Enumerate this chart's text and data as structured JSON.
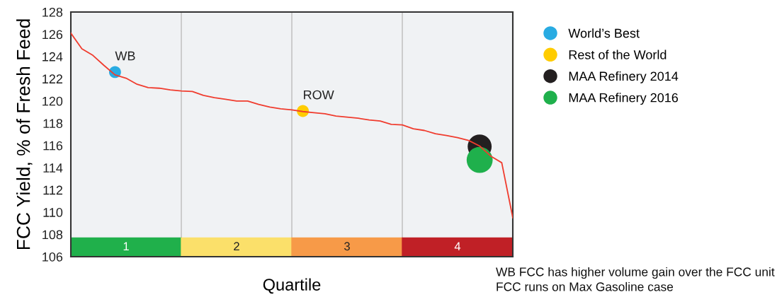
{
  "chart_data": {
    "type": "line",
    "ylabel": "FCC Yield, % of Fresh Feed",
    "xlabel": "Quartile",
    "categories": [
      null,
      null,
      null,
      null,
      null,
      null,
      null,
      null,
      null,
      null,
      null,
      null,
      null,
      null,
      null,
      null,
      null,
      null,
      null,
      null,
      null,
      null,
      null,
      null,
      null,
      null,
      null,
      null,
      null,
      null,
      null,
      null,
      null,
      null,
      null,
      null,
      null,
      null,
      null,
      null,
      null
    ],
    "ylim": [
      106,
      128
    ],
    "yticks": [
      106,
      108,
      110,
      112,
      114,
      116,
      118,
      120,
      122,
      124,
      126,
      128
    ],
    "tick_labels": "y",
    "legend": "right",
    "grid": "x",
    "series": [
      {
        "color": "#f03c2e",
        "values": [
          126.1,
          124.7,
          124.1,
          123.2,
          122.35,
          122.05,
          121.5,
          121.2,
          121.15,
          121.0,
          120.9,
          120.85,
          120.5,
          120.3,
          120.15,
          120.0,
          120.0,
          119.7,
          119.45,
          119.3,
          119.2,
          119.05,
          118.95,
          118.85,
          118.65,
          118.55,
          118.45,
          118.3,
          118.2,
          117.9,
          117.85,
          117.5,
          117.35,
          117.05,
          116.9,
          116.7,
          116.45,
          115.95,
          115.05,
          114.45,
          109.5
        ]
      },
      {
        "type": "bubble",
        "name": "World’s Best",
        "color": "#29abe2",
        "values": [
          null,
          null,
          null,
          null,
          122.6,
          null,
          null,
          null,
          null,
          null,
          null,
          null,
          null,
          null,
          null,
          null,
          null,
          null,
          null,
          null,
          null,
          null,
          null,
          null,
          null,
          null,
          null,
          null,
          null,
          null,
          null,
          null,
          null,
          null,
          null,
          null,
          null,
          null,
          null,
          null,
          null
        ],
        "sizes": [
          null,
          null,
          null,
          null,
          0.21,
          null,
          null,
          null,
          null,
          null,
          null,
          null,
          null,
          null,
          null,
          null,
          null,
          null,
          null,
          null,
          null,
          null,
          null,
          null,
          null,
          null,
          null,
          null,
          null,
          null,
          null,
          null,
          null,
          null,
          null,
          null,
          null,
          null,
          null,
          null,
          null
        ],
        "value_labels": [
          null,
          null,
          null,
          null,
          "WB",
          null,
          null,
          null,
          null,
          null,
          null,
          null,
          null,
          null,
          null,
          null,
          null,
          null,
          null,
          null,
          null,
          null,
          null,
          null,
          null,
          null,
          null,
          null,
          null,
          null,
          null,
          null,
          null,
          null,
          null,
          null,
          null,
          null,
          null,
          null,
          null
        ]
      },
      {
        "type": "bubble",
        "name": "Rest of the World",
        "color": "#ffcc00",
        "values": [
          null,
          null,
          null,
          null,
          null,
          null,
          null,
          null,
          null,
          null,
          null,
          null,
          null,
          null,
          null,
          null,
          null,
          null,
          null,
          null,
          null,
          119.1,
          null,
          null,
          null,
          null,
          null,
          null,
          null,
          null,
          null,
          null,
          null,
          null,
          null,
          null,
          null,
          null,
          null,
          null,
          null
        ],
        "sizes": [
          null,
          null,
          null,
          null,
          null,
          null,
          null,
          null,
          null,
          null,
          null,
          null,
          null,
          null,
          null,
          null,
          null,
          null,
          null,
          null,
          null,
          0.21,
          null,
          null,
          null,
          null,
          null,
          null,
          null,
          null,
          null,
          null,
          null,
          null,
          null,
          null,
          null,
          null,
          null,
          null,
          null
        ],
        "value_labels": [
          null,
          null,
          null,
          null,
          null,
          null,
          null,
          null,
          null,
          null,
          null,
          null,
          null,
          null,
          null,
          null,
          null,
          null,
          null,
          null,
          null,
          "ROW",
          null,
          null,
          null,
          null,
          null,
          null,
          null,
          null,
          null,
          null,
          null,
          null,
          null,
          null,
          null,
          null,
          null,
          null,
          null
        ]
      },
      {
        "type": "bubble",
        "name": "MAA Refinery 2014",
        "color": "#231f20",
        "values": [
          null,
          null,
          null,
          null,
          null,
          null,
          null,
          null,
          null,
          null,
          null,
          null,
          null,
          null,
          null,
          null,
          null,
          null,
          null,
          null,
          null,
          null,
          null,
          null,
          null,
          null,
          null,
          null,
          null,
          null,
          null,
          null,
          null,
          null,
          null,
          null,
          null,
          115.9,
          null,
          null,
          null
        ],
        "sizes": [
          null,
          null,
          null,
          null,
          null,
          null,
          null,
          null,
          null,
          null,
          null,
          null,
          null,
          null,
          null,
          null,
          null,
          null,
          null,
          null,
          null,
          null,
          null,
          null,
          null,
          null,
          null,
          null,
          null,
          null,
          null,
          null,
          null,
          null,
          null,
          null,
          null,
          0.85,
          null,
          null,
          null
        ]
      },
      {
        "type": "bubble",
        "name": "MAA Refinery 2016",
        "color": "#1fb04c",
        "values": [
          null,
          null,
          null,
          null,
          null,
          null,
          null,
          null,
          null,
          null,
          null,
          null,
          null,
          null,
          null,
          null,
          null,
          null,
          null,
          null,
          null,
          null,
          null,
          null,
          null,
          null,
          null,
          null,
          null,
          null,
          null,
          null,
          null,
          null,
          null,
          null,
          null,
          114.7,
          null,
          null,
          null
        ],
        "sizes": [
          null,
          null,
          null,
          null,
          null,
          null,
          null,
          null,
          null,
          null,
          null,
          null,
          null,
          null,
          null,
          null,
          null,
          null,
          null,
          null,
          null,
          null,
          null,
          null,
          null,
          null,
          null,
          null,
          null,
          null,
          null,
          null,
          null,
          null,
          null,
          null,
          null,
          1,
          null,
          null,
          null
        ]
      }
    ],
    "annotations": [
      "1",
      "2",
      "3",
      "4",
      "WB FCC has higher volume gain over the FCC unit",
      "FCC runs on Max Gasoline case"
    ]
  }
}
